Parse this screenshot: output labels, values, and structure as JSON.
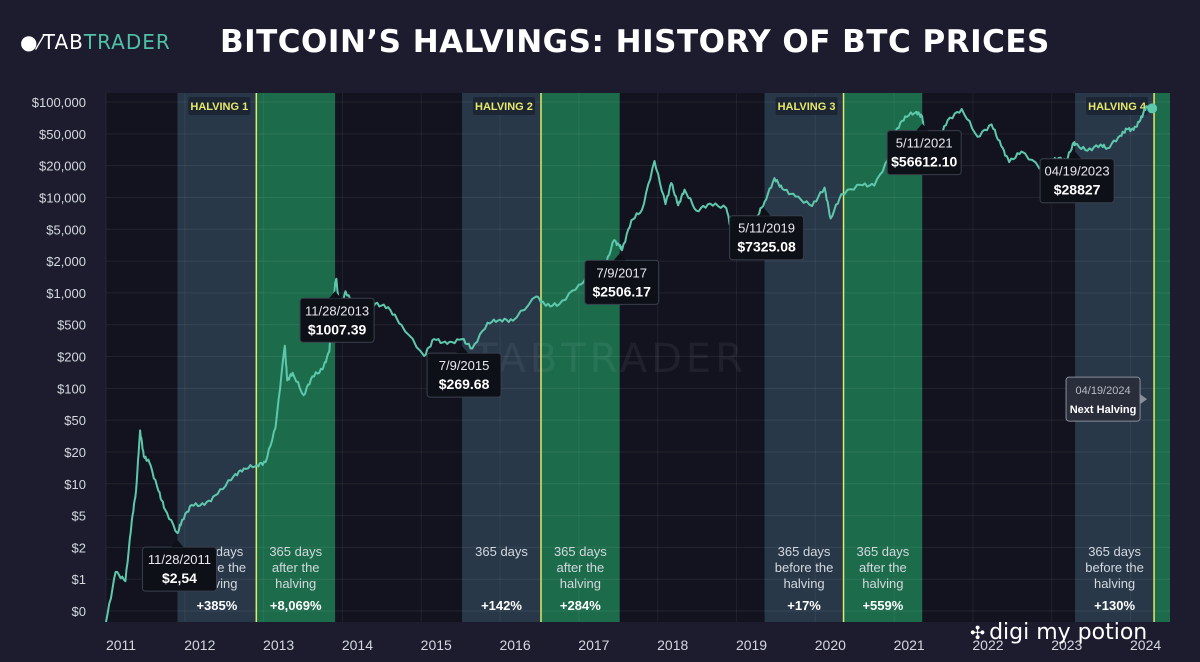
{
  "header": {
    "logo_prefix": "TAB",
    "logo_suffix": "TRADER",
    "title": "BITCOIN’S HALVINGS: HISTORY OF BTC PRICES"
  },
  "watermark": {
    "text": "digi my potion",
    "icon": "share-icon"
  },
  "colors": {
    "background": "#1c1c2e",
    "plot_background": "#13131f",
    "before_band": "#2b3d4e",
    "after_band": "#1e7c55",
    "line": "#5ec8ac",
    "halving_line": "#e6e86a",
    "halving_label": "#e6e86a"
  },
  "chart_data": {
    "type": "line",
    "title": "BITCOIN’S HALVINGS: HISTORY OF BTC PRICES",
    "xlabel": "",
    "ylabel": "",
    "y_scale": "log",
    "grid": true,
    "x_ticks": [
      "2011",
      "2012",
      "2013",
      "2014",
      "2015",
      "2016",
      "2017",
      "2018",
      "2019",
      "2020",
      "2021",
      "2022",
      "2023",
      "2024"
    ],
    "y_ticks": [
      "$100,000",
      "$50,000",
      "$20,000",
      "$10,000",
      "$5,000",
      "$2,000",
      "$1,000",
      "$500",
      "$200",
      "$100",
      "$50",
      "$20",
      "$10",
      "$5",
      "$2",
      "$1",
      "$0"
    ],
    "series": [
      {
        "points": [
          [
            "2011-01-01",
            0.3
          ],
          [
            "2011-02-15",
            1
          ],
          [
            "2011-04-01",
            0.8
          ],
          [
            "2011-05-01",
            3.5
          ],
          [
            "2011-05-20",
            7
          ],
          [
            "2011-06-08",
            30
          ],
          [
            "2011-06-25",
            16
          ],
          [
            "2011-07-20",
            14
          ],
          [
            "2011-09-01",
            7
          ],
          [
            "2011-10-01",
            4.5
          ],
          [
            "2011-11-28",
            2.54
          ],
          [
            "2011-12-20",
            3.5
          ],
          [
            "2012-02-01",
            5
          ],
          [
            "2012-04-01",
            5
          ],
          [
            "2012-06-01",
            6.5
          ],
          [
            "2012-08-15",
            10
          ],
          [
            "2012-10-01",
            12
          ],
          [
            "2012-12-01",
            13
          ],
          [
            "2013-01-10",
            14
          ],
          [
            "2013-02-25",
            32
          ],
          [
            "2013-04-09",
            230
          ],
          [
            "2013-04-20",
            100
          ],
          [
            "2013-05-15",
            120
          ],
          [
            "2013-07-05",
            70
          ],
          [
            "2013-08-15",
            110
          ],
          [
            "2013-10-01",
            130
          ],
          [
            "2013-11-01",
            200
          ],
          [
            "2013-11-28",
            1007.39
          ],
          [
            "2013-12-04",
            1150
          ],
          [
            "2013-12-18",
            520
          ],
          [
            "2014-01-15",
            850
          ],
          [
            "2014-03-01",
            570
          ],
          [
            "2014-04-15",
            430
          ],
          [
            "2014-06-01",
            630
          ],
          [
            "2014-08-01",
            580
          ],
          [
            "2014-10-01",
            380
          ],
          [
            "2015-01-14",
            180
          ],
          [
            "2015-03-01",
            270
          ],
          [
            "2015-05-01",
            240
          ],
          [
            "2015-07-09",
            269.68
          ],
          [
            "2015-08-25",
            215
          ],
          [
            "2015-11-04",
            400
          ],
          [
            "2016-01-01",
            430
          ],
          [
            "2016-03-01",
            420
          ],
          [
            "2016-06-17",
            750
          ],
          [
            "2016-08-01",
            600
          ],
          [
            "2016-10-01",
            620
          ],
          [
            "2017-01-01",
            1000
          ],
          [
            "2017-03-01",
            1200
          ],
          [
            "2017-05-01",
            1500
          ],
          [
            "2017-06-12",
            2900
          ],
          [
            "2017-07-09",
            2506.17
          ],
          [
            "2017-07-20",
            2300
          ],
          [
            "2017-09-01",
            4700
          ],
          [
            "2017-10-20",
            6000
          ],
          [
            "2017-12-17",
            19500
          ],
          [
            "2018-02-06",
            6900
          ],
          [
            "2018-03-05",
            11500
          ],
          [
            "2018-04-06",
            6700
          ],
          [
            "2018-05-05",
            9800
          ],
          [
            "2018-06-29",
            5900
          ],
          [
            "2018-09-01",
            7000
          ],
          [
            "2018-11-14",
            6300
          ],
          [
            "2018-12-15",
            3200
          ],
          [
            "2019-02-01",
            3450
          ],
          [
            "2019-04-02",
            4900
          ],
          [
            "2019-05-11",
            7325.08
          ],
          [
            "2019-06-26",
            12900
          ],
          [
            "2019-08-01",
            10000
          ],
          [
            "2019-10-01",
            8300
          ],
          [
            "2019-12-17",
            6600
          ],
          [
            "2020-02-13",
            10300
          ],
          [
            "2020-03-12",
            4900
          ],
          [
            "2020-05-01",
            8800
          ],
          [
            "2020-07-27",
            11000
          ],
          [
            "2020-10-01",
            10800
          ],
          [
            "2020-12-17",
            23000
          ],
          [
            "2021-01-08",
            40000
          ],
          [
            "2021-02-21",
            57000
          ],
          [
            "2021-04-14",
            63500
          ],
          [
            "2021-05-11",
            56612.1
          ],
          [
            "2021-05-23",
            34000
          ],
          [
            "2021-07-20",
            29800
          ],
          [
            "2021-09-06",
            52000
          ],
          [
            "2021-11-10",
            68000
          ],
          [
            "2022-01-22",
            35000
          ],
          [
            "2022-03-28",
            47000
          ],
          [
            "2022-05-12",
            28000
          ],
          [
            "2022-06-18",
            19000
          ],
          [
            "2022-08-14",
            24500
          ],
          [
            "2022-11-21",
            15800
          ],
          [
            "2023-01-15",
            21000
          ],
          [
            "2023-03-10",
            20000
          ],
          [
            "2023-04-14",
            30500
          ],
          [
            "2023-04-19",
            28827
          ],
          [
            "2023-06-15",
            25000
          ],
          [
            "2023-08-15",
            29000
          ],
          [
            "2023-09-15",
            26500
          ],
          [
            "2023-11-15",
            36000
          ],
          [
            "2023-12-15",
            42000
          ],
          [
            "2024-01-15",
            41000
          ],
          [
            "2024-02-15",
            52000
          ],
          [
            "2024-03-14",
            73000
          ],
          [
            "2024-04-10",
            69000
          ]
        ]
      }
    ],
    "halvings": [
      {
        "label": "HALVING 1",
        "date": "2012-11-28"
      },
      {
        "label": "HALVING 2",
        "date": "2016-07-09"
      },
      {
        "label": "HALVING 3",
        "date": "2020-05-11"
      },
      {
        "label": "HALVING 4",
        "date": "2024-04-19"
      }
    ],
    "bands": [
      {
        "kind": "before",
        "start": "2011-11-28",
        "end": "2012-11-28",
        "lines": [
          "365 days",
          "before the",
          "halving"
        ],
        "pct": "+385%"
      },
      {
        "kind": "after",
        "start": "2012-11-28",
        "end": "2013-11-28",
        "lines": [
          "365 days",
          "after the",
          "halving"
        ],
        "pct": "+8,069%"
      },
      {
        "kind": "before",
        "start": "2015-07-09",
        "end": "2016-07-09",
        "lines": [
          "365 days"
        ],
        "pct": "+142%"
      },
      {
        "kind": "after",
        "start": "2016-07-09",
        "end": "2017-07-09",
        "lines": [
          "365 days",
          "after the",
          "halving"
        ],
        "pct": "+284%"
      },
      {
        "kind": "before",
        "start": "2019-05-11",
        "end": "2020-05-11",
        "lines": [
          "365 days",
          "before the",
          "halving"
        ],
        "pct": "+17%"
      },
      {
        "kind": "after",
        "start": "2020-05-11",
        "end": "2021-05-11",
        "lines": [
          "365 days",
          "after the",
          "halving"
        ],
        "pct": "+559%"
      },
      {
        "kind": "before",
        "start": "2023-04-19",
        "end": "2024-04-19",
        "lines": [
          "365 days",
          "before the",
          "halving"
        ],
        "pct": "+130%"
      },
      {
        "kind": "after",
        "start": "2024-04-19",
        "end": "2024-08-15",
        "lines": [],
        "pct": ""
      }
    ],
    "annotations": [
      {
        "date_label": "11/28/2011",
        "price_label": "$2,54",
        "anchor_date": "2011-11-28",
        "anchor_value": 2.54,
        "side": "below"
      },
      {
        "date_label": "11/28/2013",
        "price_label": "$1007.39",
        "anchor_date": "2013-11-28",
        "anchor_value": 1007.39,
        "side": "below"
      },
      {
        "date_label": "7/9/2015",
        "price_label": "$269.68",
        "anchor_date": "2015-07-09",
        "anchor_value": 269.68,
        "side": "below"
      },
      {
        "date_label": "7/9/2017",
        "price_label": "$2506.17",
        "anchor_date": "2017-07-09",
        "anchor_value": 2506.17,
        "side": "below"
      },
      {
        "date_label": "5/11/2019",
        "price_label": "$7325.08",
        "anchor_date": "2019-05-11",
        "anchor_value": 7325.08,
        "side": "below"
      },
      {
        "date_label": "5/11/2021",
        "price_label": "$56612.10",
        "anchor_date": "2021-05-11",
        "anchor_value": 56612.1,
        "side": "below"
      },
      {
        "date_label": "04/19/2023",
        "price_label": "$28827",
        "anchor_date": "2023-04-19",
        "anchor_value": 28827,
        "side": "below"
      },
      {
        "date_label": "04/19/2024",
        "price_label": "Next Halving",
        "anchor_date": "2024-04-19",
        "anchor_value": 50,
        "side": "left",
        "muted": true
      }
    ],
    "background_watermark": "TABTRADER"
  }
}
